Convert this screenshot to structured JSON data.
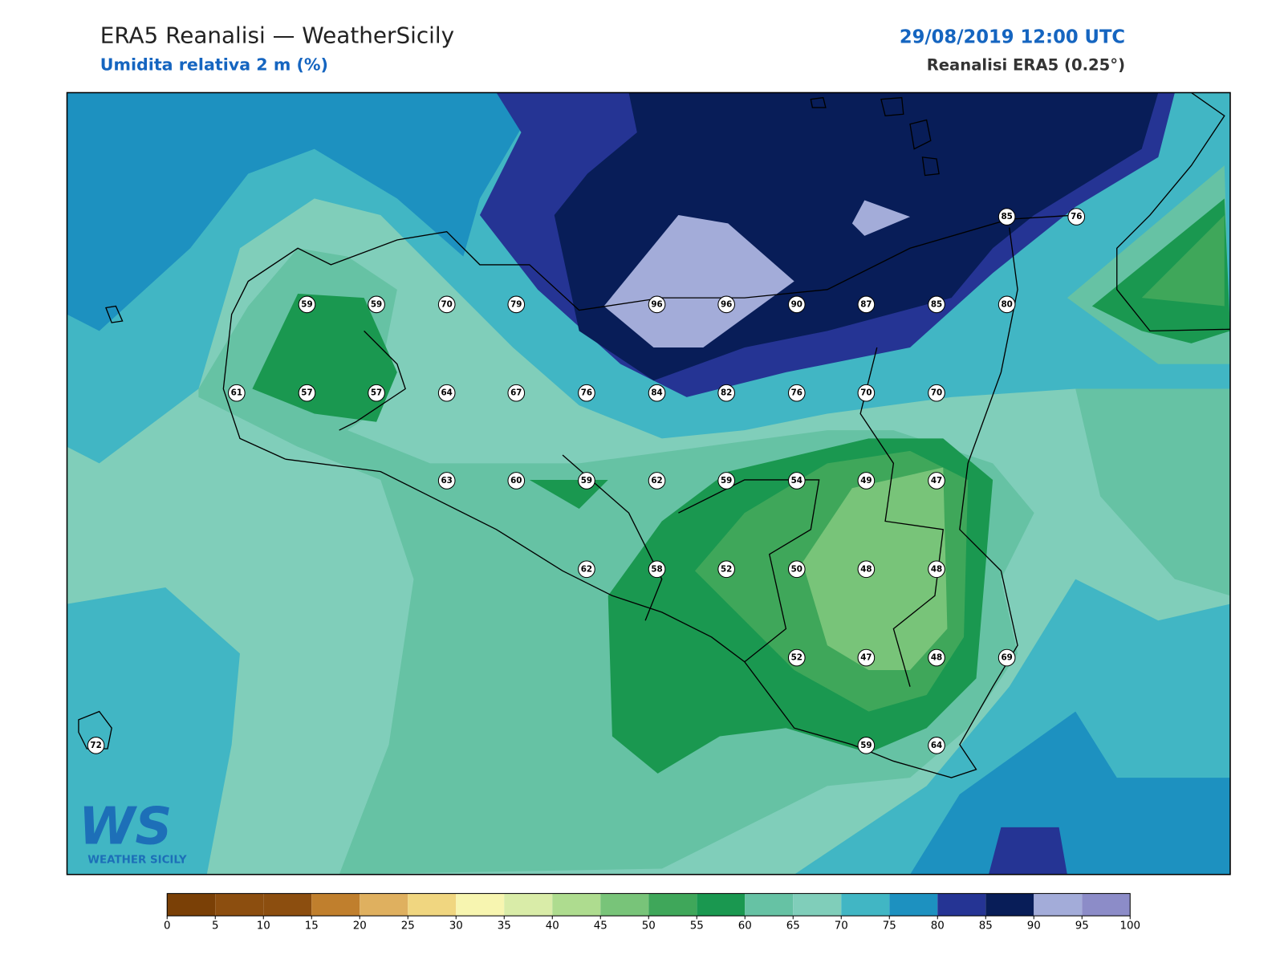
{
  "header": {
    "title": "ERA5 Reanalisi — WeatherSicily",
    "subtitle": "Umidita relativa 2 m (%)",
    "date": "29/08/2019 12:00 UTC",
    "source": "Reanalisi ERA5 (0.25°)"
  },
  "stations": [
    85,
    76,
    59,
    59,
    70,
    79,
    96,
    96,
    90,
    87,
    85,
    80,
    61,
    57,
    57,
    64,
    67,
    76,
    84,
    82,
    76,
    70,
    70,
    63,
    60,
    59,
    62,
    59,
    54,
    49,
    47,
    62,
    58,
    52,
    50,
    48,
    48,
    52,
    47,
    48,
    69,
    72,
    59,
    64
  ],
  "colorbar": {
    "ticks": [
      0,
      5,
      10,
      15,
      20,
      25,
      30,
      35,
      40,
      45,
      50,
      55,
      60,
      65,
      70,
      75,
      80,
      85,
      90,
      95,
      100
    ],
    "colors": [
      "#7a4006",
      "#8c4e0f",
      "#8c4e0f",
      "#c07f2d",
      "#dfb05f",
      "#f0d680",
      "#f7f5b0",
      "#d9eca8",
      "#aedc8f",
      "#78c479",
      "#3fa75a",
      "#1a9850",
      "#66c2a4",
      "#80ceba",
      "#41b6c4",
      "#1d91c0",
      "#253494",
      "#081d58",
      "#a3acd9",
      "#8c8cc8"
    ]
  },
  "logo": {
    "mark": "WS",
    "text": "WEATHER SICILY"
  }
}
